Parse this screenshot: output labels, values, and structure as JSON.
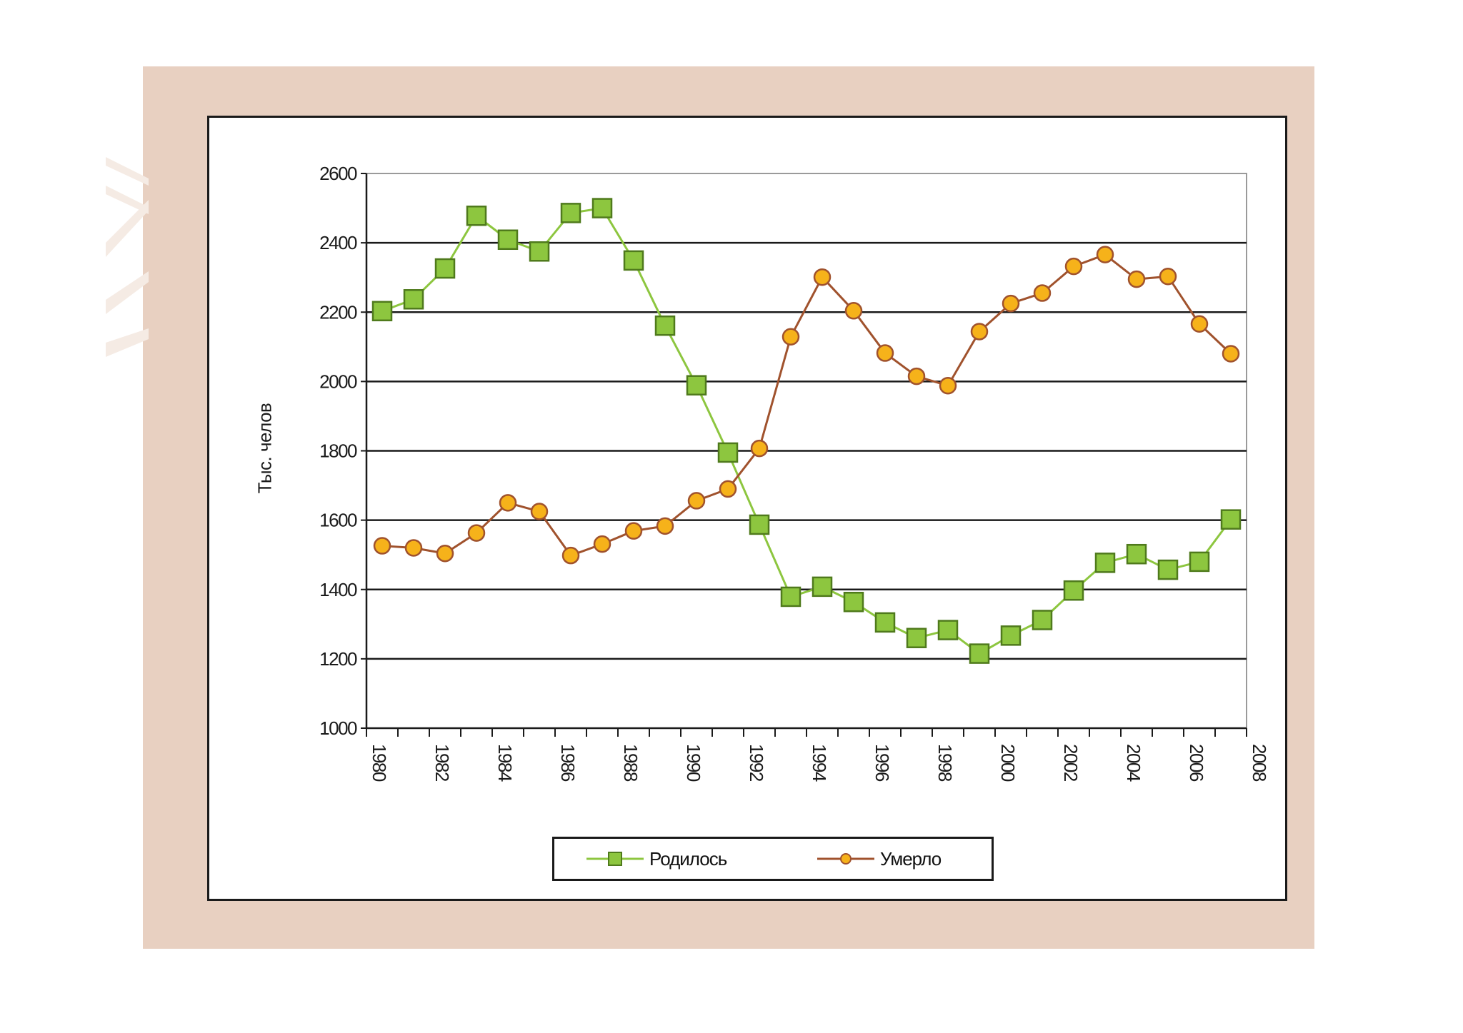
{
  "chart_data": {
    "type": "line",
    "title": "",
    "xlabel": "",
    "ylabel": "Тыс. челов",
    "ylim": [
      1000,
      2600
    ],
    "yticks": [
      1000,
      1200,
      1400,
      1600,
      1800,
      2000,
      2200,
      2400,
      2600
    ],
    "ytick_labels": [
      "1000",
      "1200",
      "1400",
      "1600",
      "1800",
      "2000",
      "2200",
      "2400",
      "2600"
    ],
    "xlim": [
      1980,
      2008
    ],
    "xticks": [
      1980,
      1982,
      1984,
      1986,
      1988,
      1990,
      1992,
      1994,
      1996,
      1998,
      2000,
      2002,
      2004,
      2006,
      2008
    ],
    "xtick_labels": [
      "1980",
      "1982",
      "1984",
      "1986",
      "1988",
      "1990",
      "1992",
      "1994",
      "1996",
      "1998",
      "2000",
      "2002",
      "2004",
      "2006",
      "2008"
    ],
    "grid": true,
    "legend_position": "bottom-center",
    "x": [
      1980,
      1981,
      1982,
      1983,
      1984,
      1985,
      1986,
      1987,
      1988,
      1989,
      1990,
      1991,
      1992,
      1993,
      1994,
      1995,
      1996,
      1997,
      1998,
      1999,
      2000,
      2001,
      2002,
      2003,
      2004,
      2005,
      2006,
      2007
    ],
    "series": [
      {
        "name": "Родилось",
        "color": "#8dc63f",
        "marker": "square",
        "marker_fill": "#8dc63f",
        "marker_edge": "#4f7a1c",
        "values": [
          2203,
          2237,
          2326,
          2478,
          2409,
          2375,
          2486,
          2500,
          2349,
          2161,
          1989,
          1795,
          1587,
          1379,
          1408,
          1364,
          1305,
          1260,
          1283,
          1215,
          1267,
          1312,
          1397,
          1477,
          1502,
          1457,
          1480,
          1602
        ]
      },
      {
        "name": "Умерло",
        "color": "#a0522d",
        "marker": "circle",
        "marker_fill": "#f6b21a",
        "marker_edge": "#a0522d",
        "values": [
          1526,
          1520,
          1504,
          1563,
          1650,
          1625,
          1498,
          1531,
          1569,
          1583,
          1656,
          1690,
          1807,
          2129,
          2301,
          2204,
          2082,
          2015,
          1988,
          2144,
          2225,
          2255,
          2332,
          2366,
          2295,
          2303,
          2166,
          2080
        ]
      }
    ]
  }
}
